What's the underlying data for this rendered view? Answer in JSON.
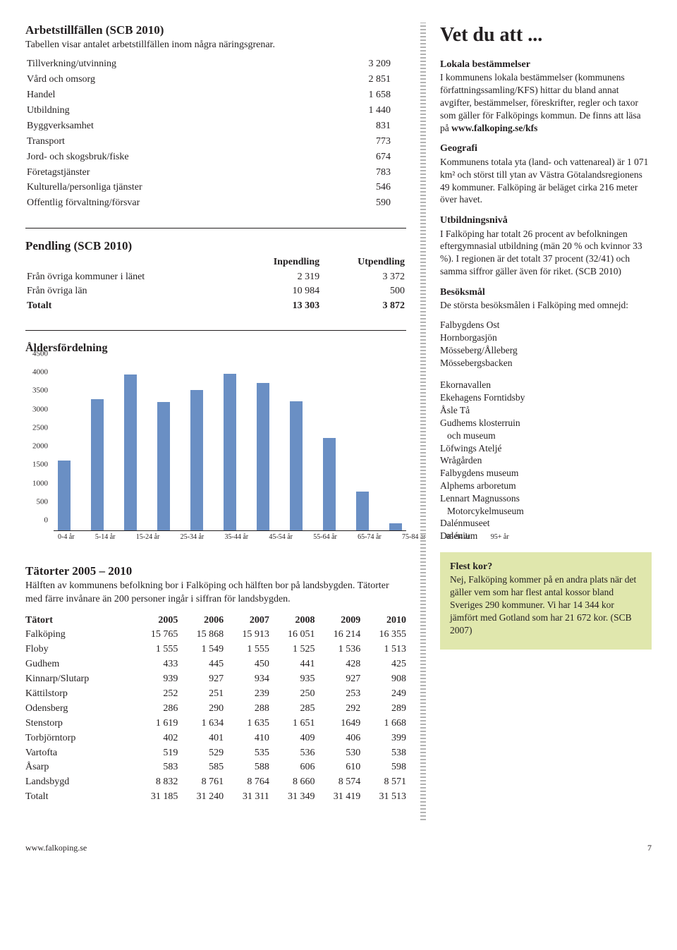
{
  "main": {
    "arbets": {
      "title": "Arbetstillfällen (SCB 2010)",
      "intro": "Tabellen visar antalet arbetstillfällen inom några näringsgrenar.",
      "rows": [
        {
          "label": "Tillverkning/utvinning",
          "value": "3 209"
        },
        {
          "label": "Vård och omsorg",
          "value": "2 851"
        },
        {
          "label": "Handel",
          "value": "1 658"
        },
        {
          "label": "Utbildning",
          "value": "1 440"
        },
        {
          "label": "Byggverksamhet",
          "value": "831"
        },
        {
          "label": "Transport",
          "value": "773"
        },
        {
          "label": "Jord- och skogsbruk/fiske",
          "value": "674"
        },
        {
          "label": "Företagstjänster",
          "value": "783"
        },
        {
          "label": "Kulturella/personliga tjänster",
          "value": "546"
        },
        {
          "label": "Offentlig förvaltning/försvar",
          "value": "590"
        }
      ]
    },
    "pendling": {
      "title": "Pendling (SCB 2010)",
      "cols": [
        "Inpendling",
        "Utpendling"
      ],
      "rows": [
        {
          "label": "Från övriga kommuner i länet",
          "in": "2 319",
          "ut": "3 372"
        },
        {
          "label": "Från övriga län",
          "in": "10 984",
          "ut": "500"
        }
      ],
      "total": {
        "label": "Totalt",
        "in": "13 303",
        "ut": "3 872"
      }
    },
    "chart": {
      "title": "Åldersfördelning",
      "type": "bar",
      "categories": [
        "0-4 år",
        "5-14 år",
        "15-24 år",
        "25-34 år",
        "35-44 år",
        "45-54 år",
        "55-64 år",
        "65-74 år",
        "75-84 år",
        "85-94 år",
        "95+ år"
      ],
      "values": [
        1900,
        3550,
        4220,
        3480,
        3800,
        4250,
        4000,
        3500,
        2500,
        1050,
        180
      ],
      "ylim": [
        0,
        4500
      ],
      "yticks": [
        0,
        500,
        1000,
        1500,
        2000,
        2500,
        3000,
        3500,
        4000,
        4500
      ],
      "bar_color": "#6a8fc4",
      "axis_color": "#231f20",
      "background": "#ffffff",
      "xlabel_fontsize": 10,
      "ylabel_fontsize": 11
    },
    "tatorter": {
      "title": "Tätorter 2005 – 2010",
      "intro": "Hälften av kommunens befolkning bor i Falköping och hälften bor på landsbygden. Tätorter med färre invånare än 200 personer ingår i siffran för landsbygden.",
      "columns": [
        "Tätort",
        "2005",
        "2006",
        "2007",
        "2008",
        "2009",
        "2010"
      ],
      "rows": [
        [
          "Falköping",
          "15 765",
          "15 868",
          "15 913",
          "16 051",
          "16 214",
          "16 355"
        ],
        [
          "Floby",
          "1 555",
          "1 549",
          "1 555",
          "1 525",
          "1 536",
          "1 513"
        ],
        [
          "Gudhem",
          "433",
          "445",
          "450",
          "441",
          "428",
          "425"
        ],
        [
          "Kinnarp/Slutarp",
          "939",
          "927",
          "934",
          "935",
          "927",
          "908"
        ],
        [
          "Kättilstorp",
          "252",
          "251",
          "239",
          "250",
          "253",
          "249"
        ],
        [
          "Odensberg",
          "286",
          "290",
          "288",
          "285",
          "292",
          "289"
        ],
        [
          "Stenstorp",
          "1 619",
          "1 634",
          "1 635",
          "1 651",
          "1649",
          "1 668"
        ],
        [
          "Torbjörntorp",
          "402",
          "401",
          "410",
          "409",
          "406",
          "399"
        ],
        [
          "Vartofta",
          "519",
          "529",
          "535",
          "536",
          "530",
          "538"
        ],
        [
          "Åsarp",
          "583",
          "585",
          "588",
          "606",
          "610",
          "598"
        ],
        [
          "Landsbygd",
          "8 832",
          "8 761",
          "8 764",
          "8 660",
          "8 574",
          "8 571"
        ],
        [
          "Totalt",
          "31 185",
          "31 240",
          "31 311",
          "31 349",
          "31 419",
          "31 513"
        ]
      ]
    }
  },
  "sidebar": {
    "title": "Vet du att ...",
    "lokala": {
      "heading": "Lokala bestämmelser",
      "text": "I kommunens lokala bestämmelser (kommunens författningssamling/KFS) hittar du bland annat avgifter, bestämmelser, föreskrifter, regler och taxor som gäller för Falköpings kommun. De finns att läsa på",
      "link": "www.falkoping.se/kfs"
    },
    "geografi": {
      "heading": "Geografi",
      "text": "Kommunens totala yta (land- och vattenareal) är 1 071 km² och störst till ytan av Västra Götalandsregionens 49 kommuner. Falköping är beläget cirka 216 meter över havet."
    },
    "utbildning": {
      "heading": "Utbildningsnivå",
      "text": "I Falköping har totalt 26 procent av befolkningen eftergymnasial utbildning (män 20 % och kvinnor 33 %). I regionen är det totalt 37 procent (32/41) och samma siffror gäller även för riket. (SCB 2010)"
    },
    "besok": {
      "heading": "Besöksmål",
      "intro": "De största besöksmålen i Falköping med omnejd:",
      "group1": [
        "Falbygdens Ost",
        "Hornborgasjön",
        "Mösseberg/Ålleberg",
        "Mössebergsbacken"
      ],
      "group2": [
        "Ekornavallen",
        "Ekehagens Forntidsby",
        "Åsle Tå",
        "Gudhems klosterruin",
        "  och museum",
        "Löfwings Ateljé",
        "Wrågården",
        "Falbygdens museum",
        "Alphems arboretum",
        "Lennart Magnussons",
        "  Motorcykelmuseum",
        "Dalénmuseet",
        "Dalénium"
      ]
    },
    "flest": {
      "heading": "Flest kor?",
      "text": "Nej, Falköping kommer på en andra plats när det gäller vem som har flest antal kossor bland Sveriges 290 kommuner. Vi har 14 344 kor jämfört med Gotland som har 21 672 kor. (SCB 2007)",
      "bg": "#e0e7ad"
    }
  },
  "footer": {
    "site": "www.falkoping.se",
    "page": "7"
  }
}
